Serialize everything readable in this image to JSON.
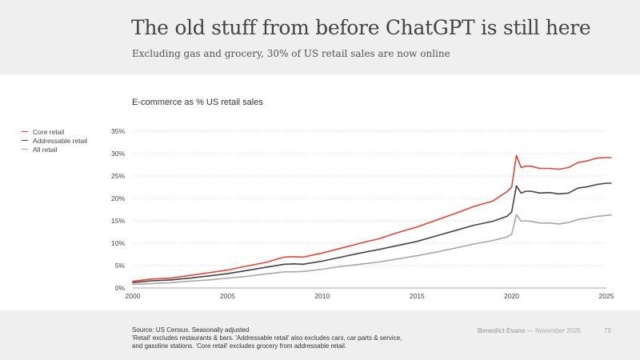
{
  "header": {
    "title": "The old stuff from before ChatGPT is still here",
    "subtitle": "Excluding gas and grocery, 30% of US retail sales are now online"
  },
  "footer": {
    "source_lines": [
      "Source: US Census. Seasonally adjusted",
      "'Retail' excludes restaurants & bars. 'Addressable retail' also excludes cars, car parts & service,",
      "and gasoline stations. 'Core retail' excludes grocery from addressable retail."
    ],
    "author": "Benedict Evans",
    "date": "November 2025",
    "page_number": "79"
  },
  "chart_data": {
    "type": "line",
    "title": "E-commerce as % US retail sales",
    "xlabel": "",
    "ylabel": "",
    "xlim": [
      2000,
      2025
    ],
    "ylim": [
      0,
      35
    ],
    "x_ticks": [
      "2000",
      "2005",
      "2010",
      "2015",
      "2020",
      "2025"
    ],
    "y_ticks": [
      "0%",
      "5%",
      "10%",
      "15%",
      "20%",
      "25%",
      "30%",
      "35%"
    ],
    "grid": "horizontal-dotted",
    "legend_position": "left",
    "series": [
      {
        "name": "Core retail",
        "color": "#e0453a",
        "x": [
          2000,
          2001,
          2002,
          2003,
          2004,
          2005,
          2006,
          2007,
          2008,
          2008.5,
          2009,
          2010,
          2011,
          2012,
          2013,
          2014,
          2015,
          2016,
          2017,
          2018,
          2019,
          2019.75,
          2020.0,
          2020.25,
          2020.5,
          2020.75,
          2021,
          2021.5,
          2022,
          2022.5,
          2023,
          2023.5,
          2024,
          2024.5,
          2025,
          2025.25
        ],
        "y": [
          1.5,
          2.0,
          2.2,
          2.8,
          3.4,
          4.0,
          4.9,
          5.7,
          6.9,
          7.0,
          6.9,
          7.8,
          8.9,
          10.0,
          11.0,
          12.4,
          13.6,
          15.1,
          16.6,
          18.2,
          19.4,
          21.5,
          22.5,
          29.6,
          26.9,
          27.2,
          27.2,
          26.7,
          26.7,
          26.5,
          26.9,
          28.0,
          28.4,
          29.0,
          29.1,
          29.1
        ]
      },
      {
        "name": "Addressable retail",
        "color": "#444444",
        "x": [
          2000,
          2001,
          2002,
          2003,
          2004,
          2005,
          2006,
          2007,
          2008,
          2008.5,
          2009,
          2010,
          2011,
          2012,
          2013,
          2014,
          2015,
          2016,
          2017,
          2018,
          2019,
          2019.75,
          2020.0,
          2020.25,
          2020.5,
          2020.75,
          2021,
          2021.5,
          2022,
          2022.5,
          2023,
          2023.5,
          2024,
          2024.5,
          2025,
          2025.25
        ],
        "y": [
          1.2,
          1.6,
          1.8,
          2.2,
          2.7,
          3.2,
          3.9,
          4.6,
          5.3,
          5.4,
          5.3,
          6.0,
          6.9,
          7.8,
          8.6,
          9.5,
          10.4,
          11.6,
          12.8,
          14.0,
          14.9,
          16.0,
          17.0,
          22.8,
          21.2,
          21.6,
          21.6,
          21.2,
          21.3,
          21.0,
          21.2,
          22.3,
          22.6,
          23.1,
          23.4,
          23.4
        ]
      },
      {
        "name": "All retail",
        "color": "#a8a8a8",
        "x": [
          2000,
          2001,
          2002,
          2003,
          2004,
          2005,
          2006,
          2007,
          2008,
          2008.5,
          2009,
          2010,
          2011,
          2012,
          2013,
          2014,
          2015,
          2016,
          2017,
          2018,
          2019,
          2019.75,
          2020.0,
          2020.25,
          2020.5,
          2020.75,
          2021,
          2021.5,
          2022,
          2022.5,
          2023,
          2023.5,
          2024,
          2024.5,
          2025,
          2025.25
        ],
        "y": [
          0.8,
          1.0,
          1.2,
          1.5,
          1.8,
          2.2,
          2.6,
          3.1,
          3.6,
          3.6,
          3.7,
          4.2,
          4.8,
          5.3,
          5.8,
          6.5,
          7.2,
          8.0,
          8.9,
          9.8,
          10.6,
          11.4,
          12.0,
          16.4,
          14.9,
          15.0,
          14.9,
          14.5,
          14.5,
          14.3,
          14.6,
          15.3,
          15.6,
          16.0,
          16.2,
          16.3
        ]
      }
    ]
  }
}
